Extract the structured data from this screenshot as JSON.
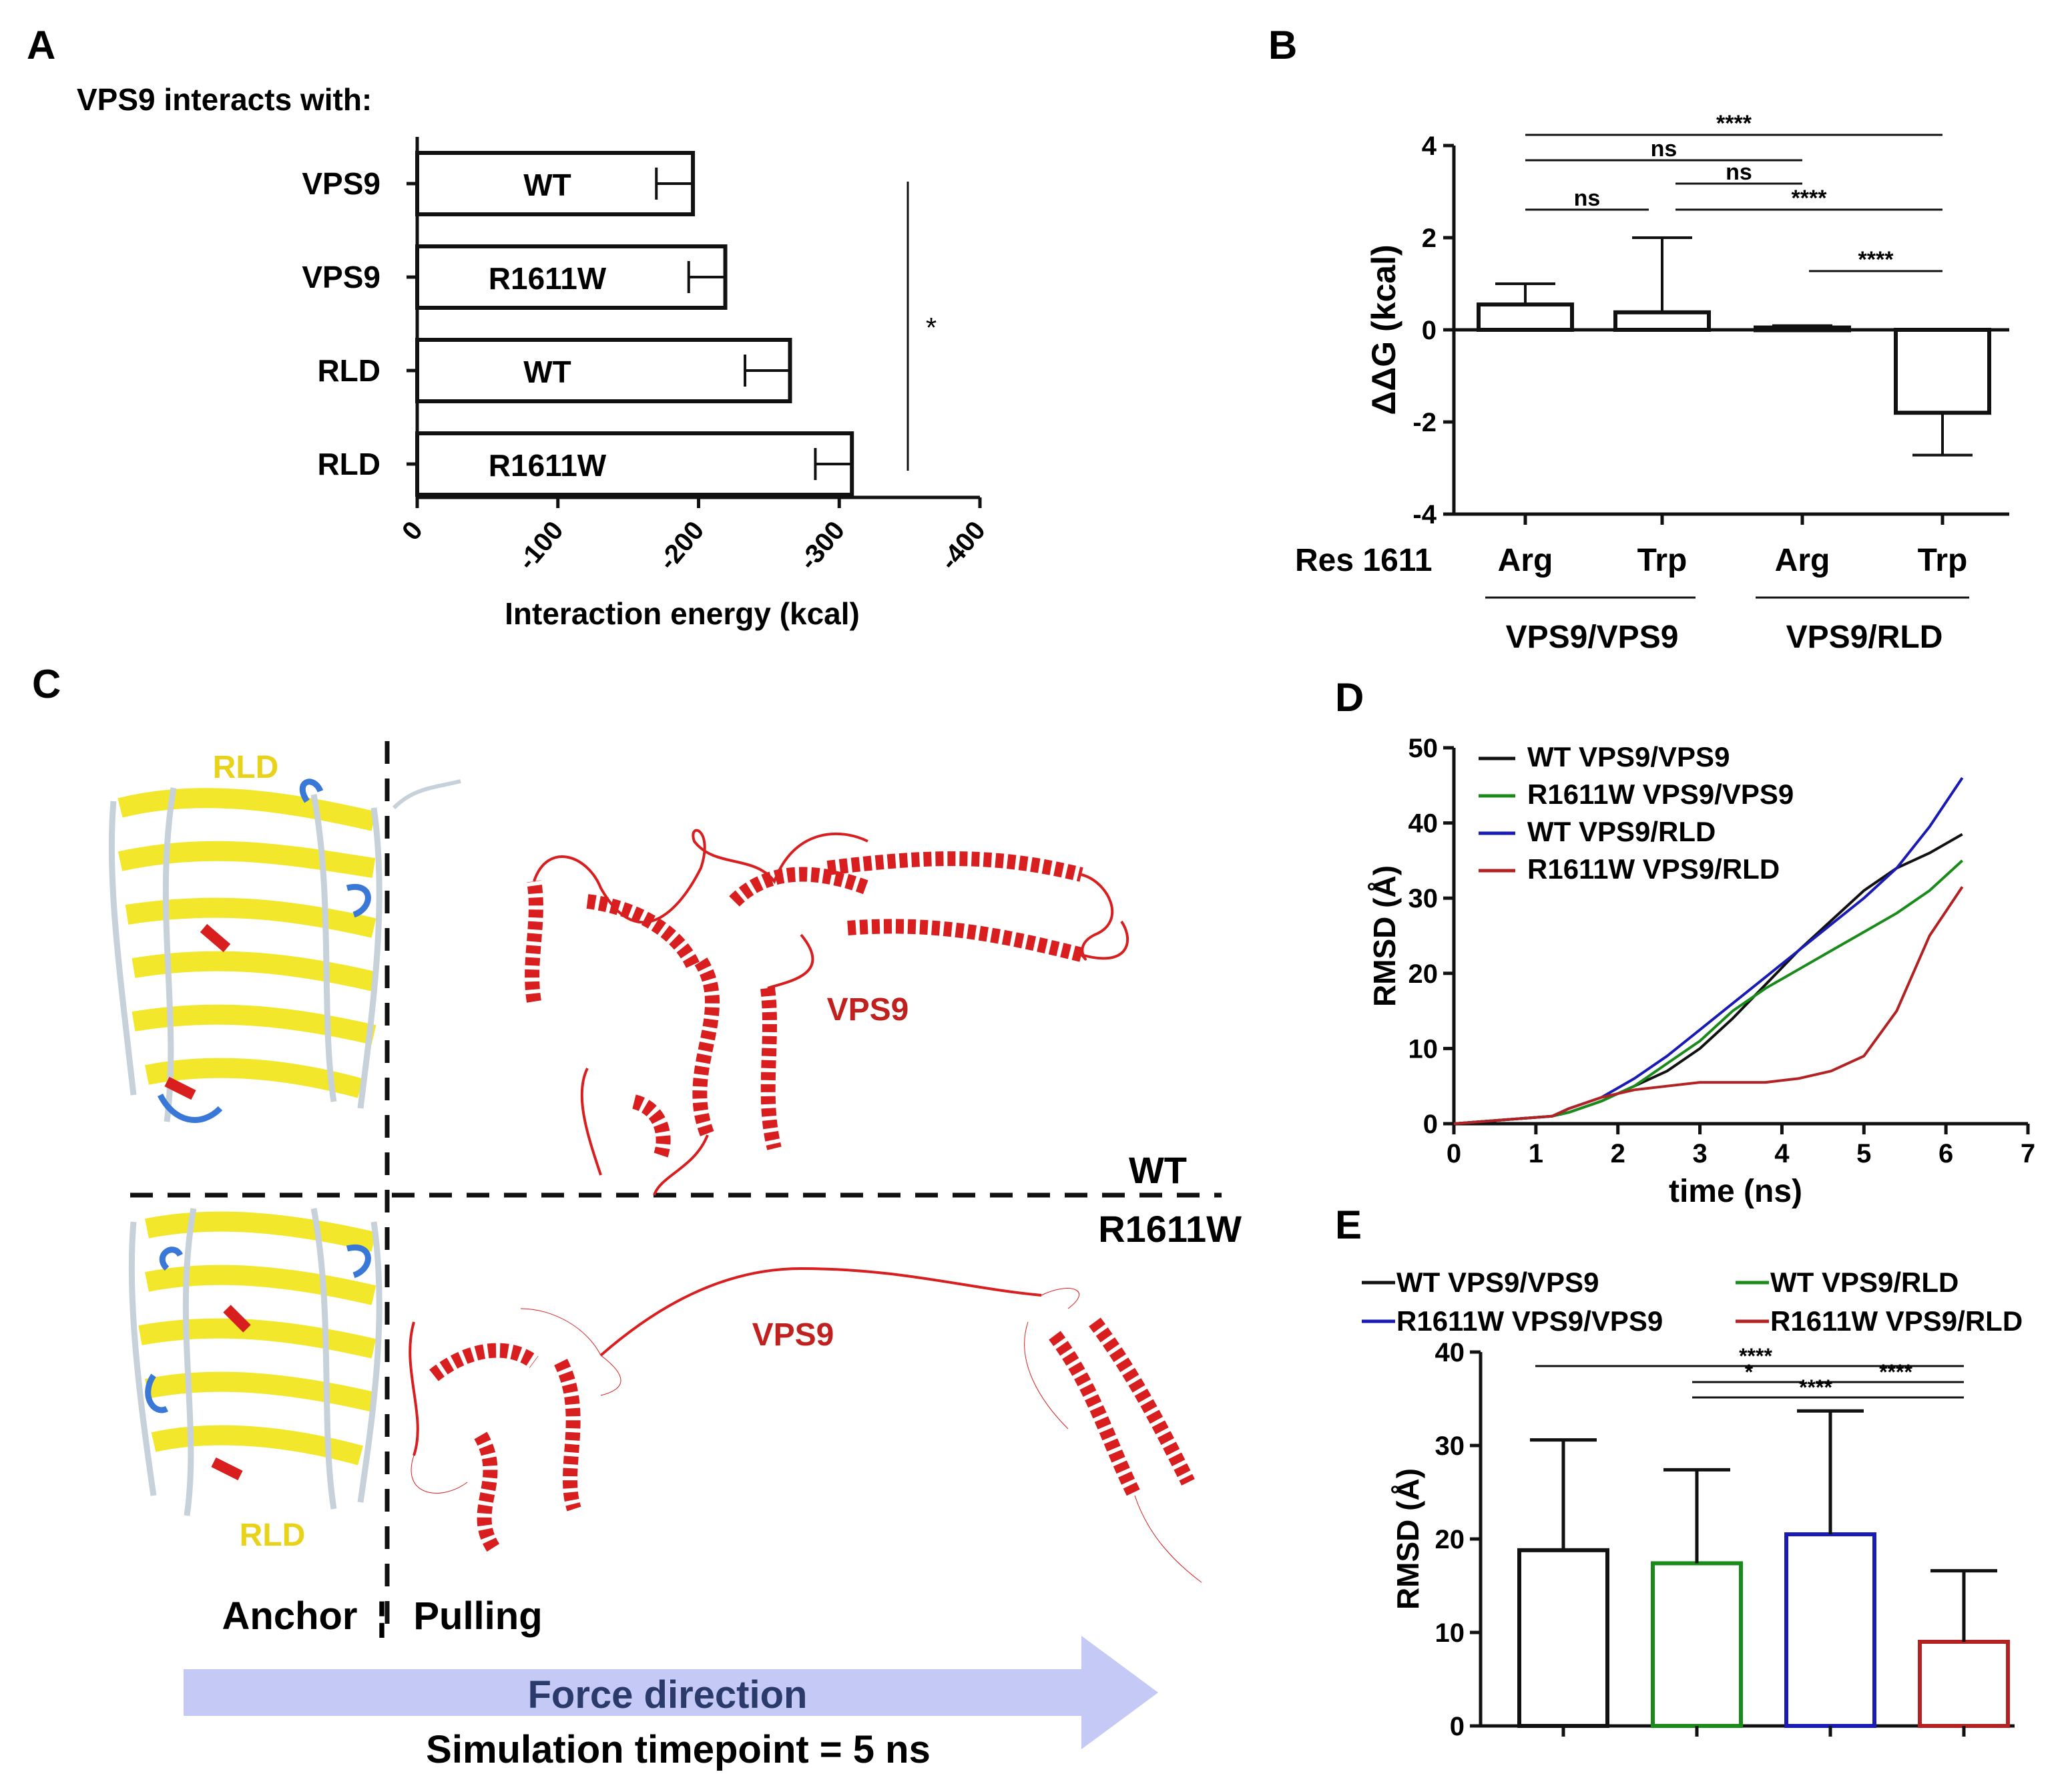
{
  "panels": {
    "a": "A",
    "b": "B",
    "c": "C",
    "d": "D",
    "e": "E"
  },
  "colors": {
    "rld_yellow": "#f2e72a",
    "vps9_red": "#d81e1e",
    "blue_loop": "#3a78d8",
    "arrow": "#c5c9f5",
    "black": "#111111",
    "green": "#1a8a1a",
    "blue": "#1a1ab4",
    "darkred": "#b22222"
  },
  "chart_data": [
    {
      "panel": "A",
      "type": "bar",
      "orientation": "horizontal",
      "title": "VPS9 interacts with:",
      "xlabel": "Interaction energy (kcal)",
      "xlim": [
        0,
        -400
      ],
      "x_ticks": [
        "0",
        "-100",
        "-200",
        "-300",
        "-400"
      ],
      "categories": [
        "VPS9",
        "VPS9",
        "RLD",
        "RLD"
      ],
      "bar_labels": [
        "WT",
        "R1611W",
        "WT",
        "R1611W"
      ],
      "values": [
        -196,
        -219,
        -265,
        -309
      ],
      "errors": [
        26,
        26,
        32,
        26
      ],
      "significance": "*"
    },
    {
      "panel": "B",
      "type": "bar",
      "ylabel": "ΔΔG (kcal)",
      "ylim": [
        -4,
        4
      ],
      "y_ticks": [
        "4",
        "2",
        "0",
        "-2",
        "-4"
      ],
      "row_label": "Res 1611",
      "categories": [
        "Arg",
        "Trp",
        "Arg",
        "Trp"
      ],
      "groups": [
        "VPS9/VPS9",
        "VPS9/RLD"
      ],
      "values": [
        0.55,
        0.38,
        0.05,
        -1.8
      ],
      "errors": [
        0.45,
        1.62,
        0.04,
        0.92
      ],
      "brackets": [
        "****",
        "ns",
        "ns",
        "ns",
        "****",
        "****"
      ]
    },
    {
      "panel": "D",
      "type": "line",
      "xlabel": "time (ns)",
      "ylabel": "RMSD (Å)",
      "xlim": [
        0,
        7
      ],
      "ylim": [
        0,
        50
      ],
      "x_ticks": [
        "0",
        "1",
        "2",
        "3",
        "4",
        "5",
        "6",
        "7"
      ],
      "y_ticks": [
        "50",
        "40",
        "30",
        "20",
        "10",
        "0"
      ],
      "series": [
        {
          "name": "WT VPS9/VPS9",
          "x": [
            0,
            1.2,
            1.4,
            1.8,
            2.2,
            2.6,
            3.0,
            3.4,
            3.8,
            4.2,
            4.6,
            5.0,
            5.4,
            5.8,
            6.2
          ],
          "y": [
            0,
            1,
            1.5,
            3,
            5,
            7,
            10,
            14,
            18.5,
            23,
            27,
            31,
            34,
            36,
            38.5
          ]
        },
        {
          "name": "R1611W VPS9/VPS9",
          "x": [
            0,
            1.2,
            1.4,
            1.8,
            2.2,
            2.6,
            3.0,
            3.4,
            3.8,
            4.2,
            4.6,
            5.0,
            5.4,
            5.8,
            6.2
          ],
          "y": [
            0,
            1,
            1.5,
            3,
            5,
            8,
            11,
            15,
            18,
            20.5,
            23,
            25.5,
            28,
            31,
            35
          ]
        },
        {
          "name": "WT VPS9/RLD",
          "x": [
            0,
            1.2,
            1.4,
            1.8,
            2.2,
            2.6,
            3.0,
            3.4,
            3.8,
            4.2,
            4.6,
            5.0,
            5.4,
            5.8,
            6.2
          ],
          "y": [
            0,
            1,
            2,
            3.5,
            6,
            9,
            12.5,
            16,
            19.5,
            23,
            26.5,
            30,
            34,
            39.5,
            46
          ]
        },
        {
          "name": "R1611W VPS9/RLD",
          "x": [
            0,
            1.2,
            1.4,
            1.8,
            2.2,
            2.6,
            3.0,
            3.4,
            3.8,
            4.2,
            4.6,
            5.0,
            5.4,
            5.8,
            6.2
          ],
          "y": [
            0,
            1,
            2,
            3.5,
            4.5,
            5,
            5.5,
            5.5,
            5.5,
            6,
            7,
            9,
            15,
            25,
            31.5
          ]
        }
      ]
    },
    {
      "panel": "E",
      "type": "bar",
      "ylabel": "RMSD (Å)",
      "ylim": [
        0,
        40
      ],
      "y_ticks": [
        "40",
        "30",
        "20",
        "10",
        "0"
      ],
      "series": [
        {
          "name": "WT VPS9/VPS9",
          "value": 18.8,
          "error": 11.8
        },
        {
          "name": "WT VPS9/RLD",
          "value": 17.4,
          "error": 10.0
        },
        {
          "name": "R1611W VPS9/VPS9",
          "value": 20.5,
          "error": 13.2
        },
        {
          "name": "R1611W VPS9/RLD",
          "value": 9.0,
          "error": 7.6
        }
      ],
      "legend": [
        "WT VPS9/VPS9",
        "WT VPS9/RLD",
        "R1611W VPS9/VPS9",
        "R1611W VPS9/RLD"
      ],
      "brackets": [
        "****",
        "*",
        "****",
        "****"
      ]
    }
  ],
  "structure": {
    "rld_top": "RLD",
    "rld_bottom": "RLD",
    "vps9_top": "VPS9",
    "vps9_bottom": "VPS9",
    "wt": "WT",
    "mut": "R1611W",
    "anchor": "Anchor",
    "sep": "¦",
    "pulling": "Pulling",
    "force": "Force direction",
    "timepoint": "Simulation timepoint = 5 ns"
  }
}
